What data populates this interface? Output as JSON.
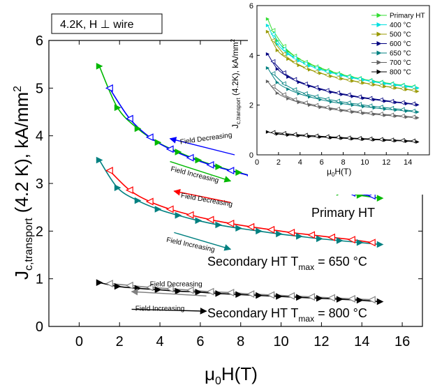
{
  "chart_data": [
    {
      "type": "line",
      "annotation": "4.2K, H ⊥ wire",
      "xlabel": {
        "main": "μ",
        "sub1": "0",
        "rest": "H(T)"
      },
      "ylabel": {
        "main": "J",
        "sub1": "c,transport",
        "rest": " (4.2 K), kA/mm",
        "sup": "2"
      },
      "xlim": [
        -1.5,
        17
      ],
      "ylim": [
        0,
        6
      ],
      "xticks": [
        0,
        2,
        4,
        6,
        8,
        10,
        12,
        14,
        16
      ],
      "yticks": [
        0,
        1,
        2,
        3,
        4,
        5,
        6
      ],
      "grid": false,
      "series": [
        {
          "label": "Primary HT",
          "up_color": "#00b800",
          "down_color": "#0000ff",
          "up_x": [
            1,
            1.9,
            2.9,
            3.9,
            4.9,
            5.9,
            6.9,
            7.9,
            8.9,
            9.9,
            10.9,
            11.9,
            12.9,
            13.9,
            14.9
          ],
          "up_y": [
            5.46,
            4.59,
            4.15,
            3.86,
            3.66,
            3.49,
            3.35,
            3.23,
            3.12,
            3.03,
            2.95,
            2.88,
            2.81,
            2.75,
            2.69
          ],
          "down_x": [
            1.5,
            2.5,
            3.5,
            4.5,
            5.5,
            6.5,
            7.5,
            8.5,
            9.5,
            10.5,
            11.5,
            12.5,
            13.5,
            14.5
          ],
          "down_y": [
            5.0,
            4.36,
            3.97,
            3.72,
            3.54,
            3.39,
            3.27,
            3.16,
            3.07,
            2.99,
            2.92,
            2.86,
            2.8,
            2.74
          ]
        },
        {
          "label": "Secondary HT T",
          "label_sub": "max",
          "label_rest": " = 650 °C",
          "up_color": "#008080",
          "down_color": "#ff0000",
          "up_x": [
            1,
            1.9,
            2.9,
            3.9,
            4.9,
            5.9,
            6.9,
            7.9,
            8.9,
            9.9,
            10.9,
            11.9,
            12.9,
            13.9,
            14.9
          ],
          "up_y": [
            3.49,
            2.91,
            2.64,
            2.46,
            2.33,
            2.22,
            2.13,
            2.06,
            2.0,
            1.94,
            1.89,
            1.84,
            1.8,
            1.76,
            1.72
          ],
          "down_x": [
            1.5,
            2.5,
            3.5,
            4.5,
            5.5,
            6.5,
            7.5,
            8.5,
            9.5,
            10.5,
            11.5,
            12.5,
            13.5,
            14.5
          ],
          "down_y": [
            3.27,
            2.86,
            2.62,
            2.46,
            2.34,
            2.24,
            2.16,
            2.09,
            2.03,
            1.97,
            1.92,
            1.87,
            1.82,
            1.76
          ]
        },
        {
          "label": "Secondary HT T",
          "label_sub": "max",
          "label_rest": " = 800 °C",
          "up_color": "#000000",
          "down_color": "#808080",
          "up_x": [
            1,
            1.9,
            2.9,
            3.9,
            4.9,
            5.9,
            6.9,
            7.9,
            8.9,
            9.9,
            10.9,
            11.9,
            12.9,
            13.9,
            14.9
          ],
          "up_y": [
            0.92,
            0.84,
            0.8,
            0.77,
            0.74,
            0.72,
            0.69,
            0.67,
            0.65,
            0.63,
            0.61,
            0.59,
            0.57,
            0.55,
            0.52
          ],
          "down_x": [
            1.5,
            2.5,
            3.5,
            4.5,
            5.5,
            6.5,
            7.5,
            8.5,
            9.5,
            10.5,
            11.5,
            12.5,
            13.5,
            14.5
          ],
          "down_y": [
            0.9,
            0.86,
            0.82,
            0.79,
            0.76,
            0.73,
            0.71,
            0.68,
            0.66,
            0.64,
            0.62,
            0.6,
            0.58,
            0.56
          ]
        }
      ],
      "arrows": [
        {
          "text": "Field Decreasing",
          "color": "#0000ff",
          "from": [
            7.7,
            3.6
          ],
          "to": [
            4.5,
            3.94
          ],
          "label_at": [
            6.3,
            3.9
          ],
          "angle": -8
        },
        {
          "text": "Field Increasing",
          "color": "#00b800",
          "from": [
            4.5,
            3.46
          ],
          "to": [
            7.5,
            3.05
          ],
          "label_at": [
            5.7,
            3.14
          ],
          "angle": 14
        },
        {
          "text": "Field Decreasing",
          "color": "#ff0000",
          "from": [
            7.5,
            2.6
          ],
          "to": [
            4.7,
            2.84
          ],
          "label_at": [
            6.3,
            2.61
          ],
          "angle": 10
        },
        {
          "text": "Field Increasing",
          "color": "#008080",
          "from": [
            4.7,
            1.97
          ],
          "to": [
            7.5,
            1.62
          ],
          "label_at": [
            5.5,
            1.67
          ],
          "angle": 12
        },
        {
          "text": "Field Decreasing",
          "color": "#808080",
          "from": [
            6.3,
            0.64
          ],
          "to": [
            2.6,
            0.73
          ],
          "label_at": [
            4.8,
            0.84
          ],
          "angle": 0
        },
        {
          "text": "Field Increasing",
          "color": "#000000",
          "from": [
            2.6,
            0.36
          ],
          "to": [
            6.3,
            0.32
          ],
          "label_at": [
            4.0,
            0.33
          ],
          "angle": 0
        }
      ]
    },
    {
      "type": "line",
      "xlabel": {
        "main": "μ",
        "sub1": "0",
        "rest": "H(T)"
      },
      "ylabel": {
        "main": "J",
        "sub1": "c,transport",
        "rest": " (4.2K), kA/mm",
        "sup": "2"
      },
      "xlim": [
        0,
        16
      ],
      "ylim": [
        0,
        6
      ],
      "xticks": [
        0,
        2,
        4,
        6,
        8,
        10,
        12,
        14
      ],
      "yticks": [
        0,
        2,
        4,
        6
      ],
      "legend_position": "top-right",
      "series": [
        {
          "name": "Primary HT",
          "color": "#33dd33",
          "up": [
            5.46,
            4.59,
            4.15,
            3.86,
            3.66,
            3.49,
            3.35,
            3.23,
            3.12,
            3.03,
            2.95,
            2.88,
            2.81,
            2.75,
            2.69
          ],
          "down": [
            5.0,
            4.36,
            3.97,
            3.72,
            3.54,
            3.39,
            3.27,
            3.16,
            3.07,
            2.99,
            2.92,
            2.86,
            2.8,
            2.74
          ]
        },
        {
          "name": "400 °C",
          "color": "#00e0e0",
          "up": [
            5.2,
            4.45,
            4.05,
            3.78,
            3.58,
            3.43,
            3.3,
            3.19,
            3.09,
            3.01,
            2.93,
            2.86,
            2.8,
            2.74,
            2.68
          ],
          "down": [
            4.85,
            4.25,
            3.9,
            3.66,
            3.49,
            3.35,
            3.23,
            3.13,
            3.05,
            2.97,
            2.9,
            2.84,
            2.78,
            2.72
          ]
        },
        {
          "name": "500 °C",
          "color": "#999900",
          "up": [
            4.95,
            4.2,
            3.85,
            3.6,
            3.42,
            3.28,
            3.16,
            3.06,
            2.97,
            2.89,
            2.82,
            2.75,
            2.69,
            2.63,
            2.55
          ],
          "down": [
            4.6,
            4.05,
            3.72,
            3.5,
            3.34,
            3.21,
            3.1,
            3.01,
            2.93,
            2.85,
            2.78,
            2.72,
            2.66,
            2.6
          ]
        },
        {
          "name": "600 °C",
          "color": "#000080",
          "up": [
            4.05,
            3.45,
            3.13,
            2.92,
            2.76,
            2.63,
            2.52,
            2.43,
            2.35,
            2.28,
            2.22,
            2.16,
            2.11,
            2.06,
            2.01
          ],
          "down": [
            3.75,
            3.3,
            3.03,
            2.85,
            2.71,
            2.59,
            2.49,
            2.41,
            2.33,
            2.27,
            2.21,
            2.15,
            2.1,
            2.05
          ]
        },
        {
          "name": "650 °C",
          "color": "#008080",
          "up": [
            3.49,
            2.91,
            2.64,
            2.46,
            2.33,
            2.22,
            2.13,
            2.06,
            2.0,
            1.94,
            1.89,
            1.84,
            1.8,
            1.76,
            1.72
          ],
          "down": [
            3.27,
            2.86,
            2.62,
            2.46,
            2.34,
            2.24,
            2.16,
            2.09,
            2.03,
            1.97,
            1.92,
            1.87,
            1.82,
            1.76
          ]
        },
        {
          "name": "700 °C",
          "color": "#606060",
          "up": [
            2.95,
            2.48,
            2.26,
            2.11,
            2.0,
            1.91,
            1.84,
            1.78,
            1.72,
            1.67,
            1.63,
            1.59,
            1.56,
            1.52,
            1.49
          ],
          "down": [
            2.75,
            2.42,
            2.22,
            2.09,
            1.99,
            1.91,
            1.84,
            1.78,
            1.73,
            1.68,
            1.64,
            1.6,
            1.56,
            1.52
          ]
        },
        {
          "name": "800 °C",
          "color": "#000000",
          "up": [
            0.92,
            0.84,
            0.8,
            0.77,
            0.74,
            0.72,
            0.69,
            0.67,
            0.65,
            0.63,
            0.61,
            0.59,
            0.57,
            0.55,
            0.52
          ],
          "down": [
            0.9,
            0.86,
            0.82,
            0.79,
            0.76,
            0.73,
            0.71,
            0.68,
            0.66,
            0.64,
            0.62,
            0.6,
            0.58,
            0.56
          ]
        }
      ]
    }
  ]
}
